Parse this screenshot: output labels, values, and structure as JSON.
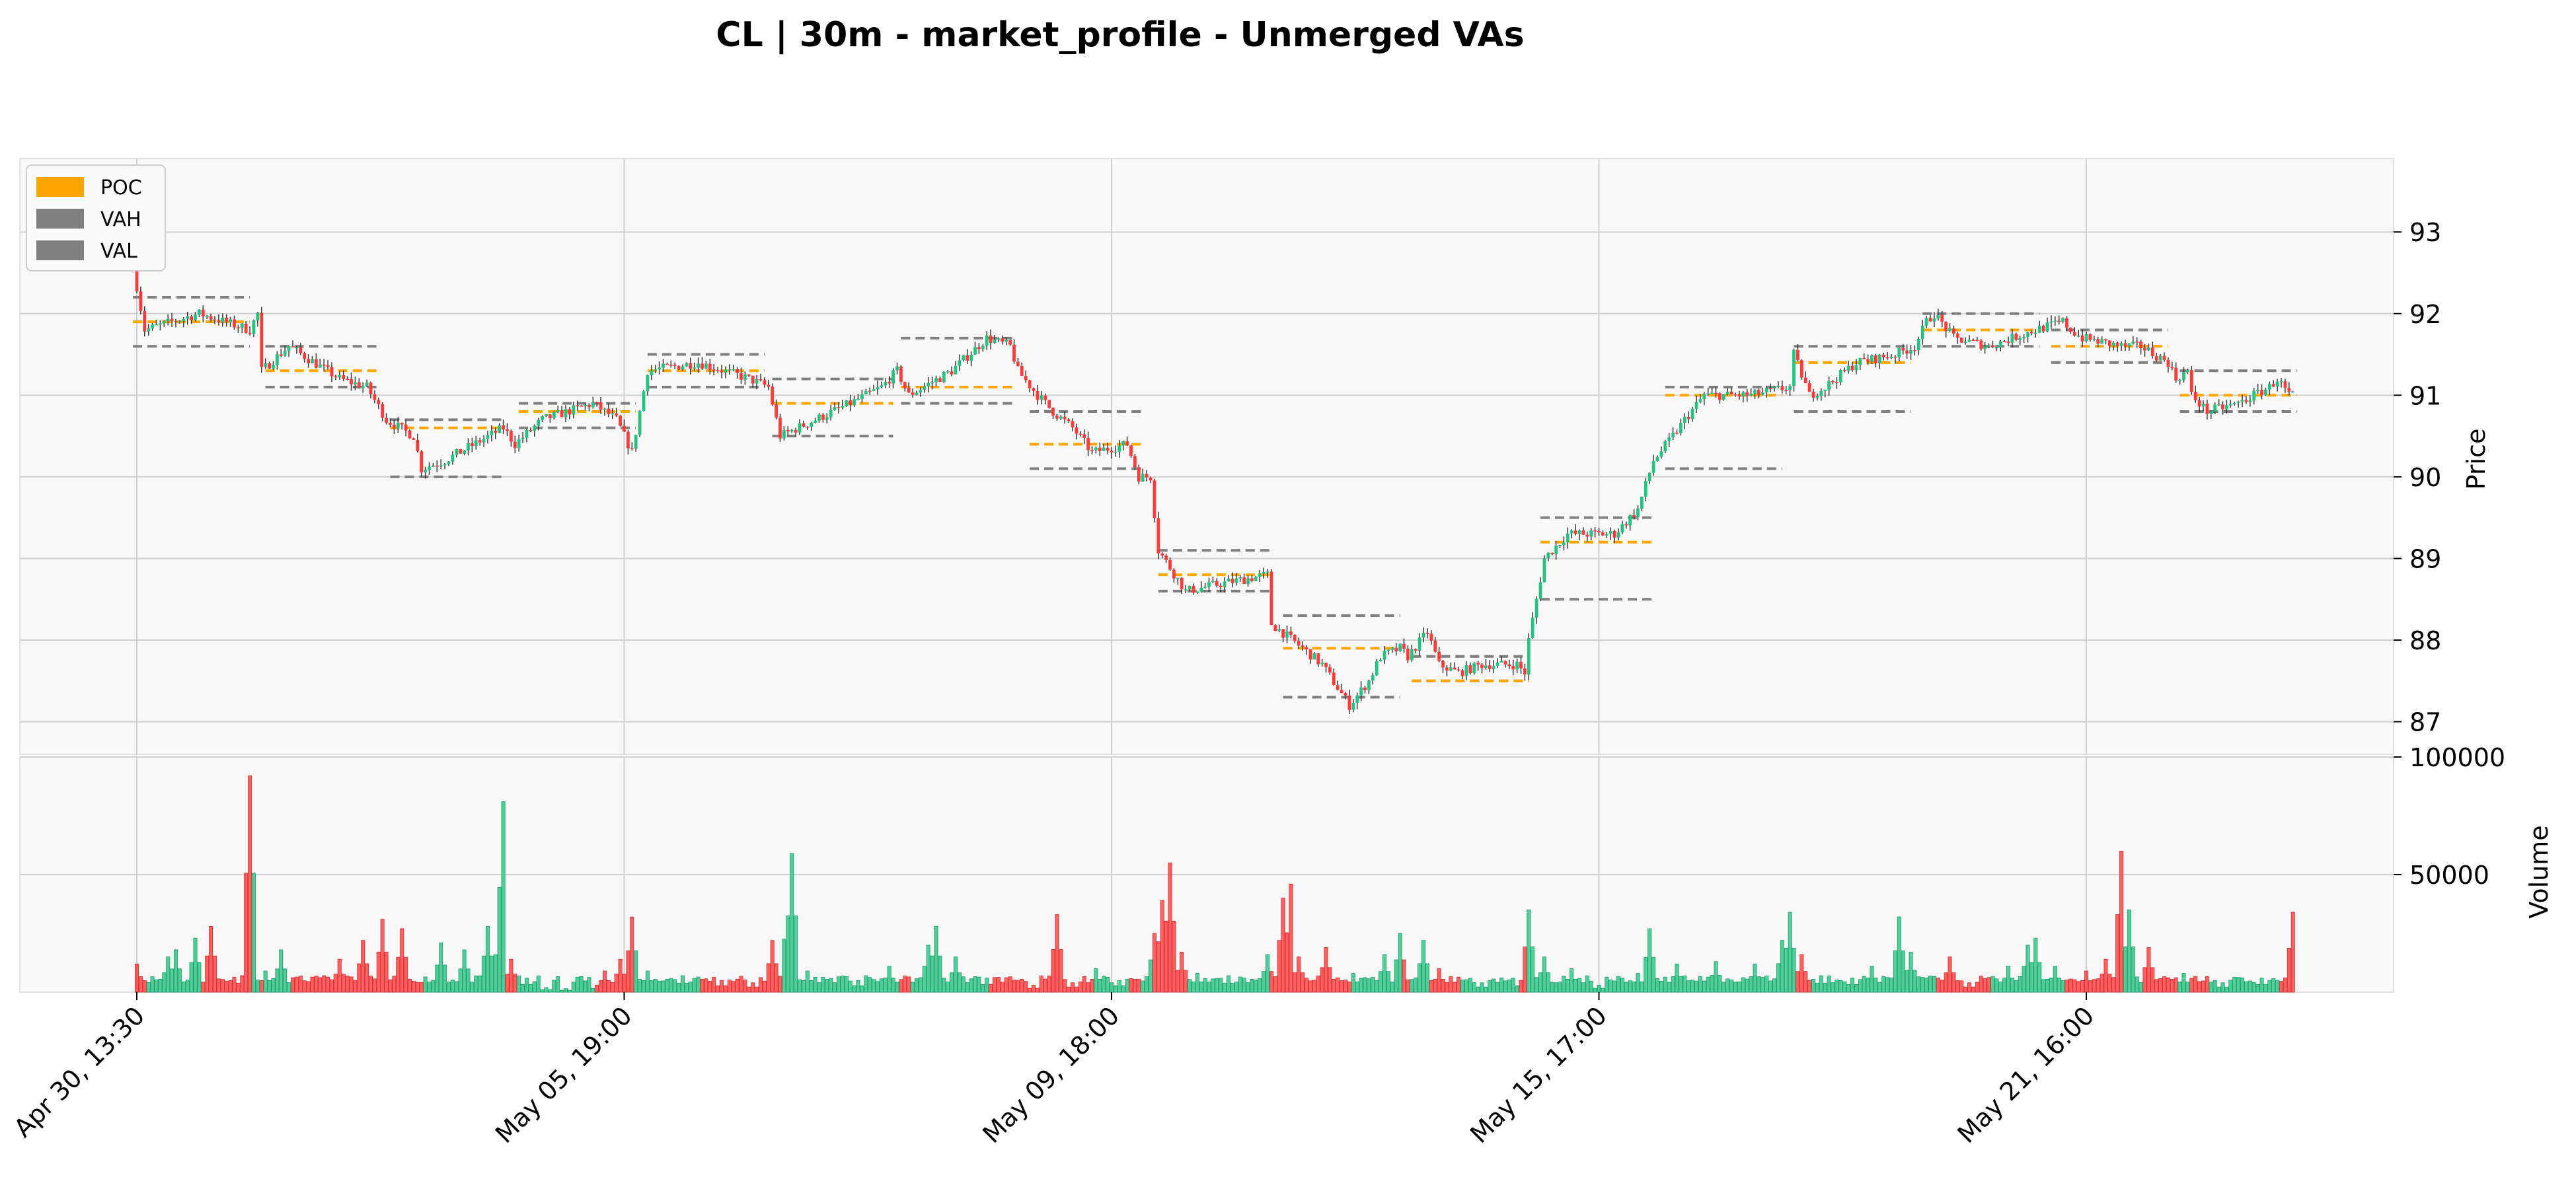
{
  "chart_data": {
    "title": "CL | 30m - market_profile - Unmerged VAs",
    "type": "candlestick",
    "grid": true,
    "legend_placement": "top-left",
    "legend": [
      {
        "label": "POC",
        "color": "#ffa500"
      },
      {
        "label": "VAH",
        "color": "#808080"
      },
      {
        "label": "VAL",
        "color": "#808080"
      }
    ],
    "colors": {
      "up": "#26c281",
      "down": "#fe3a3a",
      "poc": "#ffa500",
      "va": "#808080",
      "panel_bg": "#f8f8f8",
      "grid": "#d0d0d0"
    },
    "x_tick_labels": [
      {
        "label": "Apr 30, 13:30",
        "bar": 0
      },
      {
        "label": "May 05, 19:00",
        "bar": 125
      },
      {
        "label": "May 09, 18:00",
        "bar": 250
      },
      {
        "label": "May 15, 17:00",
        "bar": 375
      },
      {
        "label": "May 21, 16:00",
        "bar": 500
      }
    ],
    "price_axis": {
      "label": "Price",
      "ylim": [
        86.6,
        93.9
      ],
      "ticks": [
        87,
        88,
        89,
        90,
        91,
        92,
        93
      ]
    },
    "volume_axis": {
      "label": "Volume",
      "ylim": [
        0,
        100000
      ],
      "ticks": [
        "50000",
        "100000"
      ],
      "tick_values": [
        50000,
        100000
      ]
    },
    "n_bars": 554,
    "price_path": [
      [
        0,
        92.6
      ],
      [
        3,
        91.8
      ],
      [
        10,
        91.9
      ],
      [
        17,
        92.0
      ],
      [
        30,
        91.8
      ],
      [
        32,
        92.0
      ],
      [
        33,
        91.3
      ],
      [
        40,
        91.6
      ],
      [
        53,
        91.2
      ],
      [
        60,
        91.1
      ],
      [
        65,
        90.7
      ],
      [
        72,
        90.5
      ],
      [
        74,
        90.1
      ],
      [
        80,
        90.2
      ],
      [
        95,
        90.6
      ],
      [
        98,
        90.4
      ],
      [
        105,
        90.7
      ],
      [
        118,
        90.9
      ],
      [
        124,
        90.7
      ],
      [
        128,
        90.3
      ],
      [
        132,
        91.3
      ],
      [
        145,
        91.4
      ],
      [
        158,
        91.2
      ],
      [
        163,
        91.1
      ],
      [
        166,
        90.5
      ],
      [
        175,
        90.7
      ],
      [
        184,
        90.9
      ],
      [
        192,
        91.1
      ],
      [
        196,
        91.3
      ],
      [
        199,
        91.0
      ],
      [
        210,
        91.3
      ],
      [
        219,
        91.7
      ],
      [
        225,
        91.6
      ],
      [
        227,
        91.3
      ],
      [
        232,
        91.0
      ],
      [
        236,
        90.8
      ],
      [
        241,
        90.6
      ],
      [
        246,
        90.3
      ],
      [
        255,
        90.4
      ],
      [
        258,
        90.0
      ],
      [
        261,
        90.0
      ],
      [
        263,
        89.1
      ],
      [
        270,
        88.6
      ],
      [
        280,
        88.7
      ],
      [
        291,
        88.8
      ],
      [
        292,
        88.2
      ],
      [
        300,
        87.9
      ],
      [
        305,
        87.7
      ],
      [
        312,
        87.2
      ],
      [
        317,
        87.5
      ],
      [
        320,
        87.8
      ],
      [
        325,
        87.9
      ],
      [
        327,
        87.8
      ],
      [
        332,
        88.1
      ],
      [
        335,
        87.7
      ],
      [
        340,
        87.6
      ],
      [
        346,
        87.7
      ],
      [
        355,
        87.7
      ],
      [
        357,
        87.6
      ],
      [
        357,
        87.7
      ],
      [
        358,
        88.0
      ],
      [
        362,
        89.0
      ],
      [
        368,
        89.3
      ],
      [
        380,
        89.3
      ],
      [
        386,
        89.6
      ],
      [
        390,
        90.2
      ],
      [
        395,
        90.5
      ],
      [
        398,
        90.7
      ],
      [
        403,
        91.0
      ],
      [
        415,
        91.0
      ],
      [
        425,
        91.1
      ],
      [
        426,
        91.5
      ],
      [
        430,
        91.0
      ],
      [
        434,
        91.1
      ],
      [
        442,
        91.4
      ],
      [
        452,
        91.5
      ],
      [
        457,
        91.6
      ],
      [
        460,
        91.9
      ],
      [
        462,
        92.0
      ],
      [
        467,
        91.7
      ],
      [
        476,
        91.6
      ],
      [
        488,
        91.8
      ],
      [
        495,
        91.9
      ],
      [
        497,
        91.8
      ],
      [
        500,
        91.7
      ],
      [
        510,
        91.6
      ],
      [
        515,
        91.6
      ],
      [
        522,
        91.4
      ],
      [
        524,
        91.2
      ],
      [
        527,
        91.3
      ],
      [
        528,
        91.0
      ],
      [
        532,
        90.8
      ],
      [
        540,
        90.9
      ],
      [
        548,
        91.1
      ],
      [
        550,
        91.2
      ],
      [
        553,
        91.0
      ]
    ],
    "volume_profile": [
      {
        "from": 0,
        "to": 554,
        "level": 4000
      },
      {
        "bar": 0,
        "v": 12000
      },
      {
        "bar": 8,
        "v": 15000
      },
      {
        "bar": 10,
        "v": 18000
      },
      {
        "bar": 15,
        "v": 23000
      },
      {
        "bar": 19,
        "v": 28000
      },
      {
        "bar": 27,
        "v": 7000
      },
      {
        "bar": 29,
        "v": 92000
      },
      {
        "bar": 33,
        "v": 9000
      },
      {
        "bar": 37,
        "v": 18000
      },
      {
        "bar": 52,
        "v": 14000
      },
      {
        "bar": 58,
        "v": 22000
      },
      {
        "bar": 63,
        "v": 31000
      },
      {
        "bar": 68,
        "v": 27000
      },
      {
        "bar": 78,
        "v": 21000
      },
      {
        "bar": 84,
        "v": 18000
      },
      {
        "bar": 90,
        "v": 28000
      },
      {
        "bar": 93,
        "v": 29000
      },
      {
        "bar": 94,
        "v": 81000
      },
      {
        "bar": 96,
        "v": 14000
      },
      {
        "bar": 100,
        "v": 6000
      },
      {
        "bar": 105,
        "v": 2000
      },
      {
        "bar": 110,
        "v": 1500
      },
      {
        "bar": 118,
        "v": 3000
      },
      {
        "bar": 120,
        "v": 9000
      },
      {
        "bar": 124,
        "v": 14000
      },
      {
        "bar": 127,
        "v": 32000
      },
      {
        "bar": 131,
        "v": 9000
      },
      {
        "bar": 140,
        "v": 7000
      },
      {
        "bar": 150,
        "v": 5000
      },
      {
        "bar": 158,
        "v": 4000
      },
      {
        "bar": 163,
        "v": 22000
      },
      {
        "bar": 167,
        "v": 41000
      },
      {
        "bar": 168,
        "v": 59000
      },
      {
        "bar": 172,
        "v": 9000
      },
      {
        "bar": 185,
        "v": 5000
      },
      {
        "bar": 193,
        "v": 11000
      },
      {
        "bar": 203,
        "v": 20000
      },
      {
        "bar": 205,
        "v": 28000
      },
      {
        "bar": 210,
        "v": 15000
      },
      {
        "bar": 218,
        "v": 6000
      },
      {
        "bar": 230,
        "v": 3000
      },
      {
        "bar": 236,
        "v": 33000
      },
      {
        "bar": 240,
        "v": 4000
      },
      {
        "bar": 246,
        "v": 10000
      },
      {
        "bar": 252,
        "v": 5000
      },
      {
        "bar": 260,
        "v": 12000
      },
      {
        "bar": 261,
        "v": 25000
      },
      {
        "bar": 263,
        "v": 39000
      },
      {
        "bar": 265,
        "v": 55000
      },
      {
        "bar": 268,
        "v": 17000
      },
      {
        "bar": 272,
        "v": 8000
      },
      {
        "bar": 280,
        "v": 7000
      },
      {
        "bar": 290,
        "v": 16000
      },
      {
        "bar": 294,
        "v": 40000
      },
      {
        "bar": 296,
        "v": 46000
      },
      {
        "bar": 298,
        "v": 15000
      },
      {
        "bar": 305,
        "v": 19000
      },
      {
        "bar": 312,
        "v": 8000
      },
      {
        "bar": 320,
        "v": 16000
      },
      {
        "bar": 324,
        "v": 25000
      },
      {
        "bar": 330,
        "v": 22000
      },
      {
        "bar": 334,
        "v": 10000
      },
      {
        "bar": 345,
        "v": 4000
      },
      {
        "bar": 355,
        "v": 5000
      },
      {
        "bar": 357,
        "v": 35000
      },
      {
        "bar": 361,
        "v": 15000
      },
      {
        "bar": 368,
        "v": 10000
      },
      {
        "bar": 375,
        "v": 3000
      },
      {
        "bar": 385,
        "v": 8000
      },
      {
        "bar": 388,
        "v": 27000
      },
      {
        "bar": 395,
        "v": 12000
      },
      {
        "bar": 405,
        "v": 13000
      },
      {
        "bar": 415,
        "v": 12000
      },
      {
        "bar": 422,
        "v": 22000
      },
      {
        "bar": 424,
        "v": 34000
      },
      {
        "bar": 427,
        "v": 16000
      },
      {
        "bar": 432,
        "v": 7000
      },
      {
        "bar": 440,
        "v": 6000
      },
      {
        "bar": 445,
        "v": 11000
      },
      {
        "bar": 452,
        "v": 32000
      },
      {
        "bar": 455,
        "v": 17000
      },
      {
        "bar": 465,
        "v": 15000
      },
      {
        "bar": 470,
        "v": 4000
      },
      {
        "bar": 480,
        "v": 11000
      },
      {
        "bar": 485,
        "v": 20000
      },
      {
        "bar": 487,
        "v": 23000
      },
      {
        "bar": 492,
        "v": 11000
      },
      {
        "bar": 500,
        "v": 9000
      },
      {
        "bar": 505,
        "v": 14000
      },
      {
        "bar": 509,
        "v": 60000
      },
      {
        "bar": 511,
        "v": 35000
      },
      {
        "bar": 516,
        "v": 19000
      },
      {
        "bar": 525,
        "v": 8000
      },
      {
        "bar": 535,
        "v": 4000
      },
      {
        "bar": 545,
        "v": 6000
      },
      {
        "bar": 553,
        "v": 34000
      }
    ],
    "value_areas": [
      {
        "x0": -1,
        "x1": 29,
        "poc": 91.9,
        "vah": 92.2,
        "val": 91.6
      },
      {
        "x0": 33,
        "x1": 62,
        "poc": 91.3,
        "vah": 91.6,
        "val": 91.1
      },
      {
        "x0": 65,
        "x1": 94,
        "poc": 90.6,
        "vah": 90.7,
        "val": 90.0
      },
      {
        "x0": 98,
        "x1": 128,
        "poc": 90.8,
        "vah": 90.9,
        "val": 90.6
      },
      {
        "x0": 131,
        "x1": 161,
        "poc": 91.3,
        "vah": 91.5,
        "val": 91.1
      },
      {
        "x0": 163,
        "x1": 194,
        "poc": 90.9,
        "vah": 91.2,
        "val": 90.5
      },
      {
        "x0": 196,
        "x1": 225,
        "poc": 91.1,
        "vah": 91.7,
        "val": 90.9
      },
      {
        "x0": 229,
        "x1": 258,
        "poc": 90.4,
        "vah": 90.8,
        "val": 90.1
      },
      {
        "x0": 262,
        "x1": 291,
        "poc": 88.8,
        "vah": 89.1,
        "val": 88.6
      },
      {
        "x0": 294,
        "x1": 324,
        "poc": 87.9,
        "vah": 88.3,
        "val": 87.3
      },
      {
        "x0": 327,
        "x1": 357,
        "poc": 87.5,
        "vah": 87.8,
        "val": 87.5
      },
      {
        "x0": 360,
        "x1": 389,
        "poc": 89.2,
        "vah": 89.5,
        "val": 88.5
      },
      {
        "x0": 392,
        "x1": 422,
        "poc": 91.0,
        "vah": 91.1,
        "val": 90.1
      },
      {
        "x0": 425,
        "x1": 455,
        "poc": 91.4,
        "vah": 91.6,
        "val": 90.8
      },
      {
        "x0": 458,
        "x1": 488,
        "poc": 91.8,
        "vah": 92.0,
        "val": 91.6
      },
      {
        "x0": 491,
        "x1": 521,
        "poc": 91.6,
        "vah": 91.8,
        "val": 91.4
      },
      {
        "x0": 524,
        "x1": 554,
        "poc": 91.0,
        "vah": 91.3,
        "val": 90.8
      }
    ]
  }
}
